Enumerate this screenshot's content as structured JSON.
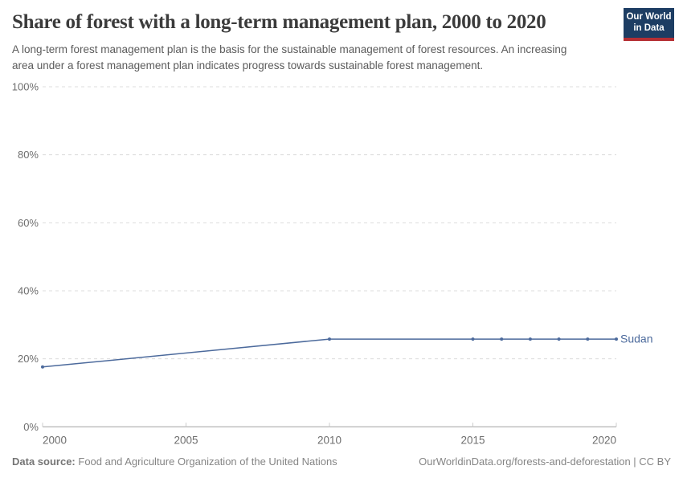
{
  "header": {
    "title": "Share of forest with a long-term management plan, 2000 to 2020",
    "subtitle": "A long-term forest management plan is the basis for the sustainable management of forest resources. An increasing area under a forest management plan indicates progress towards sustainable forest management.",
    "logo": {
      "line1": "Our World",
      "line2": "in Data"
    }
  },
  "colors": {
    "brand-navy": "#1d3d63",
    "brand-red": "#b52e33",
    "series-blue": "#4c6a9c",
    "gridline": "#dcdcdc",
    "axis-line": "#a1a1a1",
    "tick-mark": "#cccccc",
    "tick-label": "#6e6e6e"
  },
  "chart_data": {
    "type": "line",
    "title": "Share of forest with a long-term management plan, 2000 to 2020",
    "xlabel": "",
    "ylabel": "",
    "xlim": [
      2000,
      2020
    ],
    "ylim": [
      0,
      100
    ],
    "x_ticks": [
      2000,
      2005,
      2010,
      2015,
      2020
    ],
    "y_ticks": [
      0,
      20,
      40,
      60,
      80,
      100
    ],
    "y_tick_suffix": "%",
    "grid": "horizontal dashed",
    "legend_position": "entity label at right end of line",
    "series": [
      {
        "name": "Sudan",
        "color": "#4c6a9c",
        "points": [
          {
            "x": 2000,
            "y": 17.6
          },
          {
            "x": 2010,
            "y": 25.8
          },
          {
            "x": 2015,
            "y": 25.8
          },
          {
            "x": 2016,
            "y": 25.8
          },
          {
            "x": 2017,
            "y": 25.8
          },
          {
            "x": 2018,
            "y": 25.8
          },
          {
            "x": 2019,
            "y": 25.8
          },
          {
            "x": 2020,
            "y": 25.8
          }
        ]
      }
    ]
  },
  "footer": {
    "source_label": "Data source:",
    "source_text": "Food and Agriculture Organization of the United Nations",
    "attribution": "OurWorldinData.org/forests-and-deforestation | CC BY"
  }
}
